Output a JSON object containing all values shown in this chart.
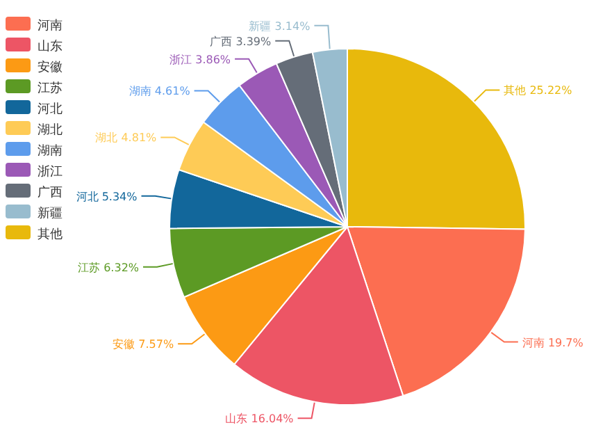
{
  "chart_data": {
    "type": "pie",
    "categories": [
      "河南",
      "山东",
      "安徽",
      "江苏",
      "河北",
      "湖北",
      "湖南",
      "浙江",
      "广西",
      "新疆",
      "其他"
    ],
    "values": [
      19.7,
      16.04,
      7.57,
      6.32,
      5.34,
      4.81,
      4.61,
      3.86,
      3.39,
      3.14,
      25.22
    ],
    "colors": [
      "#fc6e51",
      "#ed5565",
      "#fc9a14",
      "#5c9a24",
      "#12679b",
      "#fecb56",
      "#5d9cec",
      "#9b59b6",
      "#656d78",
      "#98bcce",
      "#e8b90c"
    ],
    "value_labels": [
      "19.7%",
      "16.04%",
      "7.57%",
      "6.32%",
      "5.34%",
      "4.81%",
      "4.61%",
      "3.86%",
      "3.39%",
      "3.14%",
      "25.22%"
    ],
    "legend": "top left"
  }
}
